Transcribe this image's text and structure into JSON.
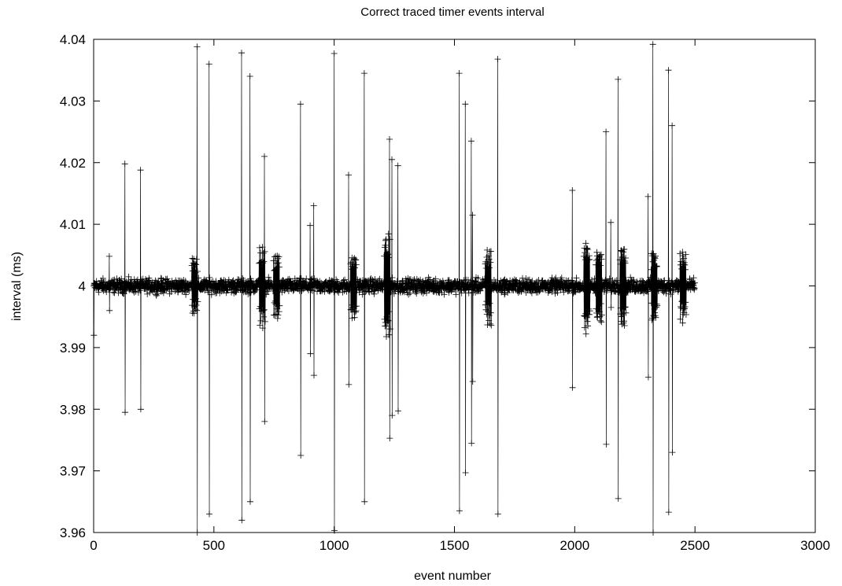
{
  "chart_data": {
    "type": "scatter",
    "title": "Correct traced timer events interval",
    "xlabel": "event number",
    "ylabel": "interval (ms)",
    "xlim": [
      0,
      3000
    ],
    "ylim": [
      3.96,
      4.04
    ],
    "x_ticks": [
      0,
      500,
      1000,
      1500,
      2000,
      2500,
      3000
    ],
    "y_ticks": [
      3.96,
      3.97,
      3.98,
      3.99,
      4.0,
      4.01,
      4.02,
      4.03,
      4.04
    ],
    "x_tick_labels": [
      "0",
      "500",
      "1000",
      "1500",
      "2000",
      "2500",
      "3000"
    ],
    "y_tick_labels": [
      "3.96",
      "3.97",
      "3.98",
      "3.99",
      "4",
      "4.01",
      "4.02",
      "4.03",
      "4.04"
    ],
    "grid": false,
    "legend": "none",
    "marker": "plus",
    "connected": true,
    "n_points": 2500,
    "baseline": 4.0,
    "baseline_spread": 0.0015,
    "spikes": [
      {
        "x": 0,
        "low": 3.992,
        "high": 4.0
      },
      {
        "x": 65,
        "low": 3.996,
        "high": 4.0048
      },
      {
        "x": 130,
        "low": 3.9795,
        "high": 4.0198
      },
      {
        "x": 195,
        "low": 3.98,
        "high": 4.0188
      },
      {
        "x": 430,
        "low": 3.96,
        "high": 4.0388
      },
      {
        "x": 480,
        "low": 3.963,
        "high": 4.036
      },
      {
        "x": 615,
        "low": 3.962,
        "high": 4.0378
      },
      {
        "x": 650,
        "low": 3.965,
        "high": 4.034
      },
      {
        "x": 710,
        "low": 3.978,
        "high": 4.021
      },
      {
        "x": 860,
        "low": 3.9725,
        "high": 4.0295
      },
      {
        "x": 900,
        "low": 3.989,
        "high": 4.0098
      },
      {
        "x": 915,
        "low": 3.9855,
        "high": 4.013
      },
      {
        "x": 1000,
        "low": 3.9603,
        "high": 4.0377
      },
      {
        "x": 1060,
        "low": 3.984,
        "high": 4.018
      },
      {
        "x": 1125,
        "low": 3.965,
        "high": 4.0345
      },
      {
        "x": 1230,
        "low": 3.9753,
        "high": 4.0238
      },
      {
        "x": 1240,
        "low": 3.979,
        "high": 4.0205
      },
      {
        "x": 1265,
        "low": 3.9797,
        "high": 4.0195
      },
      {
        "x": 1520,
        "low": 3.9635,
        "high": 4.0345
      },
      {
        "x": 1545,
        "low": 3.9697,
        "high": 4.0295
      },
      {
        "x": 1570,
        "low": 3.9745,
        "high": 4.0235
      },
      {
        "x": 1575,
        "low": 3.9845,
        "high": 4.0115
      },
      {
        "x": 1680,
        "low": 3.963,
        "high": 4.0368
      },
      {
        "x": 1990,
        "low": 3.9835,
        "high": 4.0155
      },
      {
        "x": 2130,
        "low": 3.9743,
        "high": 4.025
      },
      {
        "x": 2150,
        "low": 3.9965,
        "high": 4.0103
      },
      {
        "x": 2180,
        "low": 3.9655,
        "high": 4.0335
      },
      {
        "x": 2305,
        "low": 3.9852,
        "high": 4.0145
      },
      {
        "x": 2325,
        "low": 3.96,
        "high": 4.0392
      },
      {
        "x": 2390,
        "low": 3.9633,
        "high": 4.035
      },
      {
        "x": 2405,
        "low": 3.973,
        "high": 4.026
      }
    ],
    "moderate_bursts": [
      {
        "x": 420,
        "spread": 0.0045
      },
      {
        "x": 700,
        "spread": 0.0065
      },
      {
        "x": 760,
        "spread": 0.0055
      },
      {
        "x": 1080,
        "spread": 0.005
      },
      {
        "x": 1220,
        "spread": 0.0085
      },
      {
        "x": 1640,
        "spread": 0.006
      },
      {
        "x": 2050,
        "spread": 0.0075
      },
      {
        "x": 2100,
        "spread": 0.0055
      },
      {
        "x": 2200,
        "spread": 0.006
      },
      {
        "x": 2330,
        "spread": 0.0055
      },
      {
        "x": 2450,
        "spread": 0.0055
      }
    ]
  }
}
